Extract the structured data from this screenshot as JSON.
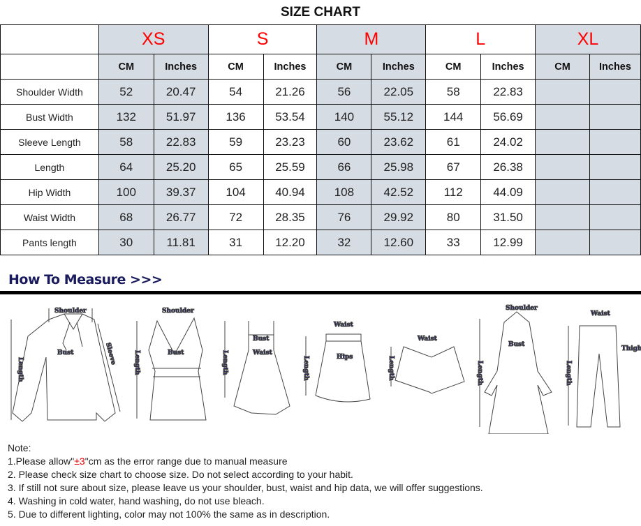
{
  "title": "SIZE CHART",
  "sizes": [
    "XS",
    "S",
    "M",
    "L",
    "XL"
  ],
  "units": [
    "CM",
    "Inches"
  ],
  "colors": {
    "size_label": "#ff0000",
    "shaded_column": "#d6dce4",
    "heading": "#1a1a5e"
  },
  "rows": [
    {
      "label": "Shoulder Width",
      "values": [
        "52",
        "20.47",
        "54",
        "21.26",
        "56",
        "22.05",
        "58",
        "22.83",
        "",
        ""
      ]
    },
    {
      "label": "Bust Width",
      "values": [
        "132",
        "51.97",
        "136",
        "53.54",
        "140",
        "55.12",
        "144",
        "56.69",
        "",
        ""
      ]
    },
    {
      "label": "Sleeve Length",
      "values": [
        "58",
        "22.83",
        "59",
        "23.23",
        "60",
        "23.62",
        "61",
        "24.02",
        "",
        ""
      ]
    },
    {
      "label": "Length",
      "values": [
        "64",
        "25.20",
        "65",
        "25.59",
        "66",
        "25.98",
        "67",
        "26.38",
        "",
        ""
      ]
    },
    {
      "label": "Hip Width",
      "values": [
        "100",
        "39.37",
        "104",
        "40.94",
        "108",
        "42.52",
        "112",
        "44.09",
        "",
        ""
      ]
    },
    {
      "label": "Waist Width",
      "values": [
        "68",
        "26.77",
        "72",
        "28.35",
        "76",
        "29.92",
        "80",
        "31.50",
        "",
        ""
      ]
    },
    {
      "label": "Pants length",
      "values": [
        "30",
        "11.81",
        "31",
        "12.20",
        "32",
        "12.60",
        "33",
        "12.99",
        "",
        ""
      ]
    }
  ],
  "how_to_measure": "How To Measure >>>",
  "diagram_labels": {
    "shoulder": "Shoulder",
    "bust": "Bust",
    "sleeve": "Sleeve",
    "length": "Length",
    "waist": "Waist",
    "hips": "Hips",
    "thigh": "Thigh"
  },
  "notes": {
    "heading": "Note:",
    "n1_pre": "1.Please allow\"",
    "n1_red": "±3",
    "n1_post": "\"cm as the error range due to manual measure",
    "n2": "2. Please check size chart to choose size. Do not select according to your habit.",
    "n3": "3. If still not sure about size, please leave us your shoulder, bust, waist and hip data, we will offer suggestions.",
    "n4": "4. Washing in cold water, hand washing, do not use bleach.",
    "n5": "5. Due to different lighting, color may not 100% the same as in description."
  }
}
